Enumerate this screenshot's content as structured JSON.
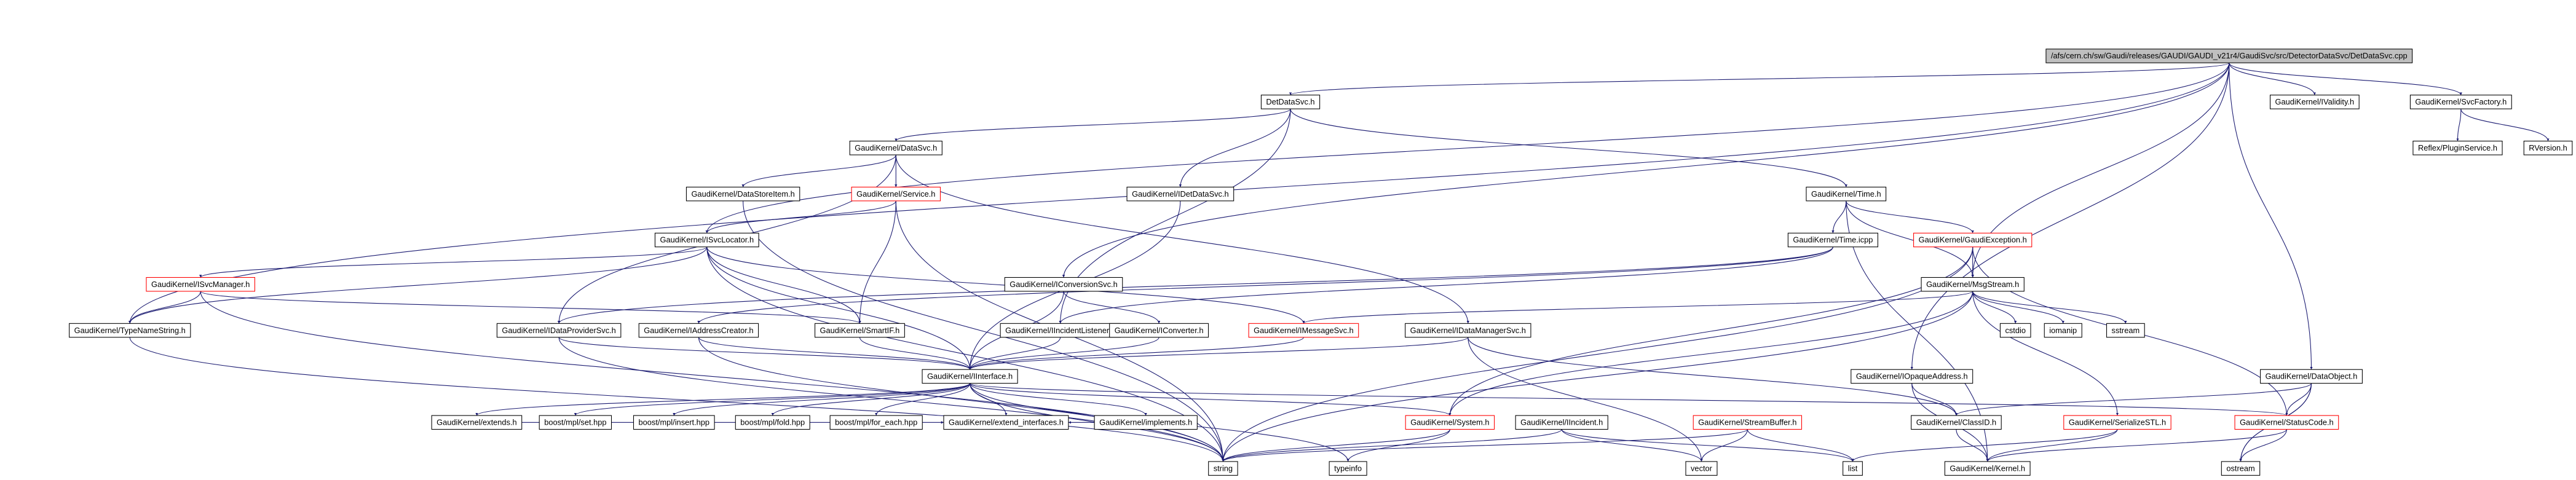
{
  "nodes": [
    {
      "label": "/afs/cern.ch/sw/Gaudi/releases/GAUDI/GAUDI_v21r4/GaudiSvc/src/DetectorDataSvc/DetDataSvc.cpp"
    },
    {
      "label": "DetDataSvc.h"
    },
    {
      "label": "GaudiKernel/IValidity.h"
    },
    {
      "label": "GaudiKernel/SvcFactory.h"
    },
    {
      "label": "Reflex/PluginService.h"
    },
    {
      "label": "RVersion.h"
    },
    {
      "label": "GaudiKernel/DataSvc.h"
    },
    {
      "label": "GaudiKernel/DataStoreItem.h"
    },
    {
      "label": "GaudiKernel/Service.h"
    },
    {
      "label": "GaudiKernel/IDetDataSvc.h"
    },
    {
      "label": "GaudiKernel/Time.h"
    },
    {
      "label": "GaudiKernel/ISvcLocator.h"
    },
    {
      "label": "GaudiKernel/Time.icpp"
    },
    {
      "label": "GaudiKernel/GaudiException.h"
    },
    {
      "label": "GaudiKernel/ISvcManager.h"
    },
    {
      "label": "GaudiKernel/IConversionSvc.h"
    },
    {
      "label": "GaudiKernel/MsgStream.h"
    },
    {
      "label": "GaudiKernel/TypeNameString.h"
    },
    {
      "label": "GaudiKernel/IDataProviderSvc.h"
    },
    {
      "label": "GaudiKernel/IAddressCreator.h"
    },
    {
      "label": "GaudiKernel/SmartIF.h"
    },
    {
      "label": "GaudiKernel/IIncidentListener.h"
    },
    {
      "label": "GaudiKernel/IConverter.h"
    },
    {
      "label": "GaudiKernel/IMessageSvc.h"
    },
    {
      "label": "GaudiKernel/IDataManagerSvc.h"
    },
    {
      "label": "cstdio"
    },
    {
      "label": "iomanip"
    },
    {
      "label": "sstream"
    },
    {
      "label": "GaudiKernel/IOpaqueAddress.h"
    },
    {
      "label": "GaudiKernel/DataObject.h"
    },
    {
      "label": "GaudiKernel/IInterface.h"
    },
    {
      "label": "GaudiKernel/extends.h"
    },
    {
      "label": "boost/mpl/set.hpp"
    },
    {
      "label": "boost/mpl/insert.hpp"
    },
    {
      "label": "boost/mpl/fold.hpp"
    },
    {
      "label": "boost/mpl/for_each.hpp"
    },
    {
      "label": "GaudiKernel/extend_interfaces.h"
    },
    {
      "label": "GaudiKernel/implements.h"
    },
    {
      "label": "GaudiKernel/System.h"
    },
    {
      "label": "GaudiKernel/IIncident.h"
    },
    {
      "label": "GaudiKernel/StreamBuffer.h"
    },
    {
      "label": "GaudiKernel/ClassID.h"
    },
    {
      "label": "GaudiKernel/SerializeSTL.h"
    },
    {
      "label": "GaudiKernel/StatusCode.h"
    },
    {
      "label": "string"
    },
    {
      "label": "typeinfo"
    },
    {
      "label": "vector"
    },
    {
      "label": "list"
    },
    {
      "label": "GaudiKernel/Kernel.h"
    },
    {
      "label": "ostream"
    }
  ]
}
